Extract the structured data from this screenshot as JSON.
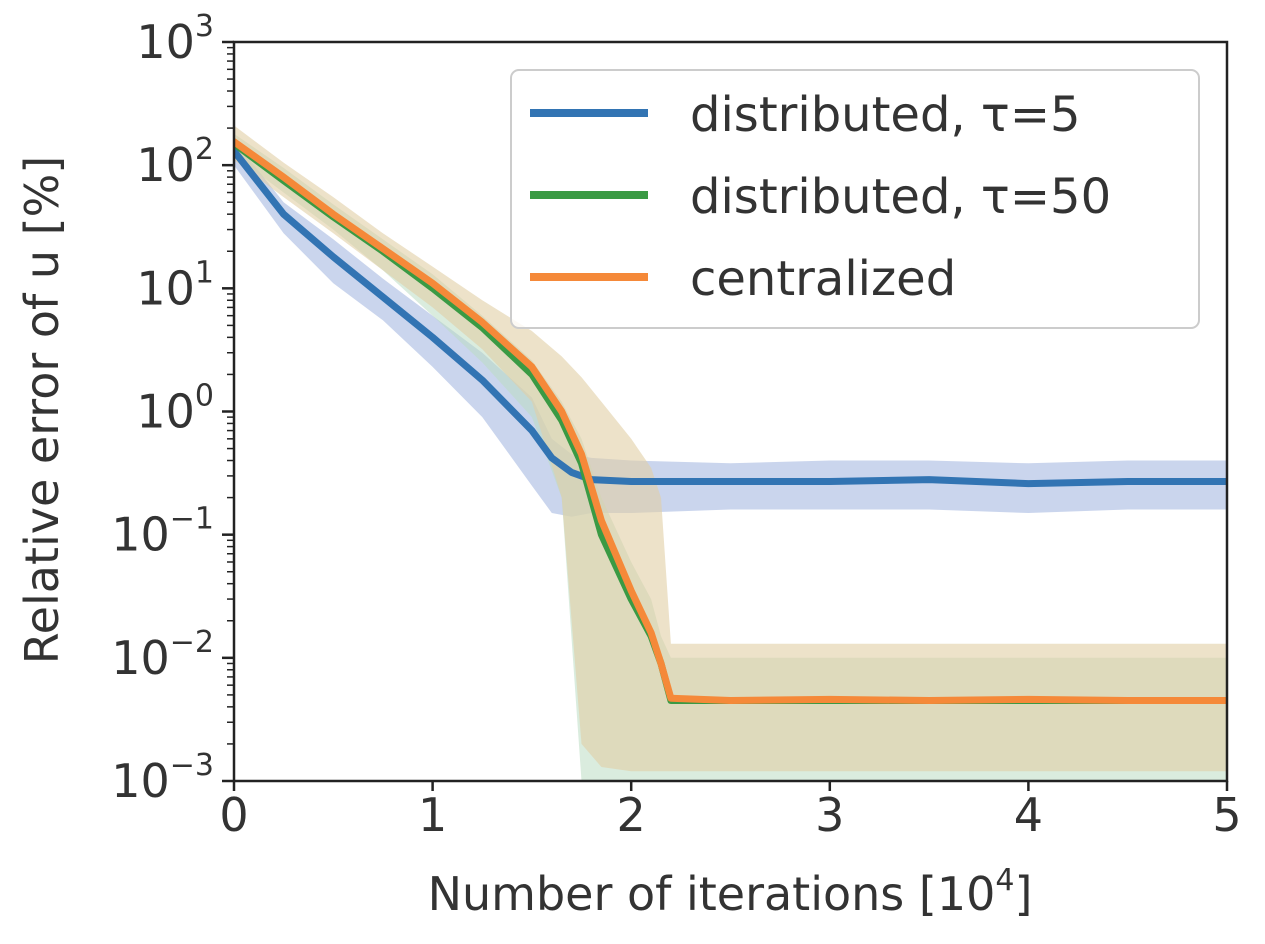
{
  "chart_data": {
    "type": "line",
    "title": "",
    "xlabel": "Number of iterations [10",
    "xlabel_sup": "4",
    "xlabel_end": "]",
    "ylabel": "Relative error of u [%]",
    "xlim": [
      0,
      5
    ],
    "ylim": [
      0.001,
      1000
    ],
    "yscale": "log",
    "xticks": [
      {
        "value": 0,
        "label": "0"
      },
      {
        "value": 1,
        "label": "1"
      },
      {
        "value": 2,
        "label": "2"
      },
      {
        "value": 3,
        "label": "3"
      },
      {
        "value": 4,
        "label": "4"
      },
      {
        "value": 5,
        "label": "5"
      }
    ],
    "yticks": [
      {
        "value": 0.001,
        "base": "10",
        "exp": "−3"
      },
      {
        "value": 0.01,
        "base": "10",
        "exp": "−2"
      },
      {
        "value": 0.1,
        "base": "10",
        "exp": "−1"
      },
      {
        "value": 1,
        "base": "10",
        "exp": "0"
      },
      {
        "value": 10,
        "base": "10",
        "exp": "1"
      },
      {
        "value": 100,
        "base": "10",
        "exp": "2"
      },
      {
        "value": 1000,
        "base": "10",
        "exp": "3"
      }
    ],
    "legend_position": "top-right",
    "series": [
      {
        "name": "distributed, τ=5",
        "color": "#3274b3",
        "band_color": "#a7b9e1",
        "x": [
          0,
          0.25,
          0.5,
          0.75,
          1.0,
          1.25,
          1.5,
          1.6,
          1.7,
          1.8,
          2.0,
          2.5,
          3.0,
          3.5,
          4.0,
          4.5,
          5.0
        ],
        "y": [
          130,
          40,
          18,
          8.5,
          4.0,
          1.8,
          0.7,
          0.42,
          0.32,
          0.28,
          0.27,
          0.27,
          0.27,
          0.28,
          0.26,
          0.27,
          0.27
        ],
        "band_low": [
          100,
          28,
          11,
          5.5,
          2.3,
          0.9,
          0.25,
          0.15,
          0.14,
          0.15,
          0.15,
          0.16,
          0.16,
          0.16,
          0.15,
          0.16,
          0.16
        ],
        "band_high": [
          160,
          50,
          25,
          12,
          6,
          3,
          1.3,
          0.6,
          0.45,
          0.42,
          0.4,
          0.38,
          0.4,
          0.4,
          0.38,
          0.4,
          0.4
        ]
      },
      {
        "name": "distributed, τ=50",
        "color": "#3a9a44",
        "band_color": "#bcdcc3",
        "x": [
          0,
          0.25,
          0.5,
          0.75,
          1.0,
          1.25,
          1.5,
          1.65,
          1.75,
          1.85,
          2.0,
          2.1,
          2.15,
          2.2,
          2.5,
          3.0,
          3.5,
          4.0,
          4.5,
          5.0
        ],
        "y": [
          150,
          75,
          38,
          20,
          10,
          4.8,
          2.0,
          0.85,
          0.38,
          0.1,
          0.03,
          0.015,
          0.009,
          0.0045,
          0.0045,
          0.0045,
          0.0045,
          0.0045,
          0.0045,
          0.0045
        ],
        "band_low": [
          120,
          60,
          30,
          14,
          6,
          2.5,
          0.9,
          0.2,
          0.001,
          0.001,
          0.001,
          0.001,
          0.001,
          0.001,
          0.001,
          0.001,
          0.001,
          0.001,
          0.001,
          0.001
        ],
        "band_high": [
          180,
          95,
          48,
          25,
          13,
          6,
          2.6,
          1.2,
          0.6,
          0.2,
          0.06,
          0.03,
          0.015,
          0.01,
          0.01,
          0.01,
          0.01,
          0.01,
          0.01,
          0.01
        ]
      },
      {
        "name": "centralized",
        "color": "#f58939",
        "band_color": "#e1cea5",
        "x": [
          0,
          0.25,
          0.5,
          0.75,
          1.0,
          1.25,
          1.5,
          1.65,
          1.75,
          1.85,
          2.0,
          2.1,
          2.15,
          2.2,
          2.5,
          3.0,
          3.5,
          4.0,
          4.5,
          5.0
        ],
        "y": [
          155,
          80,
          40,
          21,
          11,
          5.3,
          2.3,
          1.0,
          0.45,
          0.13,
          0.035,
          0.016,
          0.009,
          0.0047,
          0.0045,
          0.0046,
          0.0045,
          0.0046,
          0.0045,
          0.0045
        ],
        "band_low": [
          110,
          55,
          28,
          14,
          7,
          3.2,
          1.2,
          0.2,
          0.002,
          0.0013,
          0.0012,
          0.0012,
          0.0012,
          0.0012,
          0.0012,
          0.0012,
          0.0012,
          0.0012,
          0.0012,
          0.0012
        ],
        "band_high": [
          210,
          105,
          55,
          28,
          15,
          8,
          4.5,
          2.8,
          1.9,
          1.2,
          0.6,
          0.35,
          0.2,
          0.013,
          0.013,
          0.013,
          0.013,
          0.013,
          0.013,
          0.013
        ]
      }
    ]
  }
}
